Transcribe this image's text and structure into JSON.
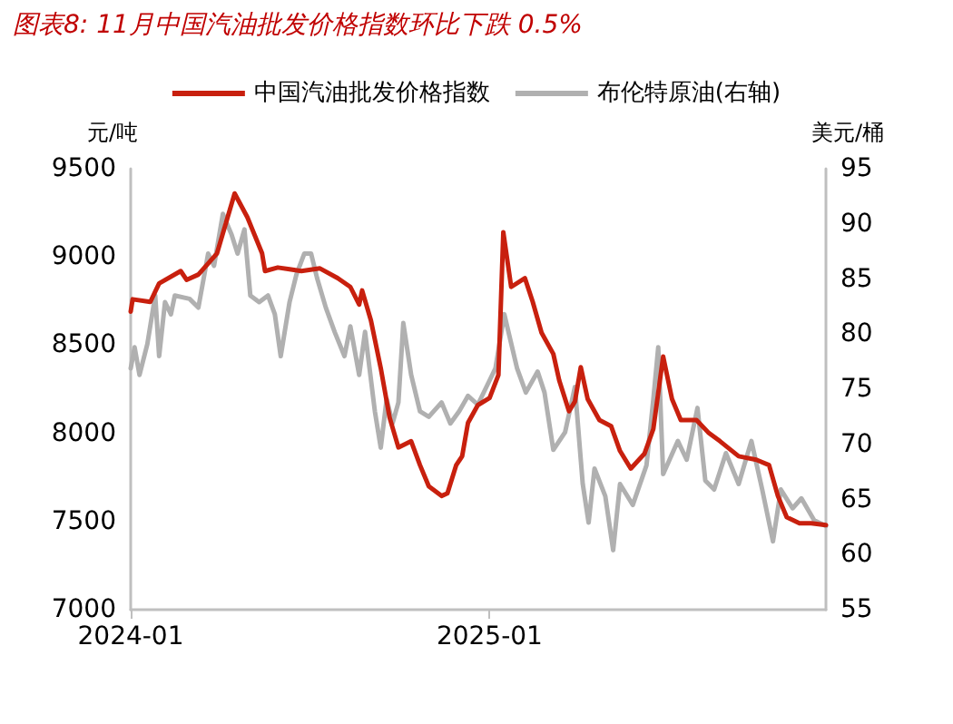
{
  "chart_data": {
    "type": "line",
    "title": "图表8: 11月中国汽油批发价格指数环比下跌 0.5%",
    "ylabel": "元/吨",
    "y2label": "美元/桶",
    "xlim": [
      "2024-01-01",
      "2025-12-10"
    ],
    "xticks": [
      {
        "value": "2024-01-01",
        "label": "2024-01"
      },
      {
        "value": "2025-01-01",
        "label": "2025-01"
      }
    ],
    "ylim": [
      7000,
      9500
    ],
    "yticks": [
      7000,
      7500,
      8000,
      8500,
      9000,
      9500
    ],
    "y2lim": [
      55,
      95
    ],
    "y2ticks": [
      55,
      60,
      65,
      70,
      75,
      80,
      85,
      90,
      95
    ],
    "legend": "top",
    "grid": false,
    "marker": "none",
    "line_style": "solid",
    "series": [
      {
        "name": "中国汽油批发价格指数",
        "color": "#c8200e",
        "x": [
          "2024-01-01",
          "2024-01-03",
          "2024-01-21",
          "2024-01-30",
          "2024-02-21",
          "2024-02-27",
          "2024-03-10",
          "2024-03-29",
          "2024-04-16",
          "2024-04-29",
          "2024-05-14",
          "2024-05-17",
          "2024-05-30",
          "2024-06-11",
          "2024-06-23",
          "2024-07-12",
          "2024-07-30",
          "2024-08-12",
          "2024-08-21",
          "2024-08-24",
          "2024-09-02",
          "2024-09-12",
          "2024-09-21",
          "2024-09-30",
          "2024-10-13",
          "2024-10-22",
          "2024-10-31",
          "2024-11-13",
          "2024-11-19",
          "2024-11-28",
          "2024-12-04",
          "2024-12-10",
          "2024-12-20",
          "2025-01-01",
          "2025-01-10",
          "2025-01-15",
          "2025-01-23",
          "2025-02-06",
          "2025-02-14",
          "2025-02-23",
          "2025-03-07",
          "2025-03-13",
          "2025-03-23",
          "2025-03-29",
          "2025-04-04",
          "2025-04-11",
          "2025-04-23",
          "2025-05-05",
          "2025-05-14",
          "2025-05-25",
          "2025-06-08",
          "2025-06-17",
          "2025-06-27",
          "2025-07-06",
          "2025-07-15",
          "2025-07-31",
          "2025-08-12",
          "2025-08-24",
          "2025-09-12",
          "2025-09-30",
          "2025-10-13",
          "2025-10-22",
          "2025-10-31",
          "2025-11-13",
          "2025-11-25",
          "2025-12-10"
        ],
        "values": [
          8690,
          8760,
          8745,
          8850,
          8920,
          8870,
          8900,
          9020,
          9360,
          9225,
          9020,
          8920,
          8940,
          8930,
          8920,
          8935,
          8880,
          8830,
          8730,
          8810,
          8640,
          8370,
          8090,
          7920,
          7955,
          7820,
          7700,
          7645,
          7660,
          7820,
          7870,
          8060,
          8160,
          8200,
          8330,
          9140,
          8830,
          8880,
          8745,
          8570,
          8450,
          8300,
          8125,
          8180,
          8375,
          8195,
          8075,
          8040,
          7900,
          7800,
          7885,
          8025,
          8435,
          8195,
          8075,
          8075,
          8005,
          7955,
          7870,
          7850,
          7820,
          7645,
          7525,
          7490,
          7490,
          7480
        ]
      },
      {
        "name": "布伦特原油(右轴)",
        "color": "#b0b0b0",
        "axis": "y2",
        "x": [
          "2024-01-01",
          "2024-01-05",
          "2024-01-10",
          "2024-01-18",
          "2024-01-26",
          "2024-01-30",
          "2024-02-05",
          "2024-02-11",
          "2024-02-15",
          "2024-03-01",
          "2024-03-10",
          "2024-03-20",
          "2024-03-26",
          "2024-04-04",
          "2024-04-13",
          "2024-04-19",
          "2024-04-26",
          "2024-05-02",
          "2024-05-11",
          "2024-05-20",
          "2024-05-27",
          "2024-06-02",
          "2024-06-11",
          "2024-06-18",
          "2024-06-26",
          "2024-07-03",
          "2024-07-09",
          "2024-07-18",
          "2024-07-27",
          "2024-08-06",
          "2024-08-12",
          "2024-08-21",
          "2024-08-27",
          "2024-09-06",
          "2024-09-12",
          "2024-09-18",
          "2024-09-24",
          "2024-09-30",
          "2024-10-05",
          "2024-10-13",
          "2024-10-22",
          "2024-10-31",
          "2024-11-13",
          "2024-11-22",
          "2024-12-01",
          "2024-12-10",
          "2024-12-20",
          "2025-01-01",
          "2025-01-07",
          "2025-01-16",
          "2025-01-29",
          "2025-02-07",
          "2025-02-19",
          "2025-02-26",
          "2025-03-07",
          "2025-03-19",
          "2025-03-29",
          "2025-04-06",
          "2025-04-12",
          "2025-04-18",
          "2025-04-29",
          "2025-05-07",
          "2025-05-14",
          "2025-05-27",
          "2025-06-10",
          "2025-06-17",
          "2025-06-22",
          "2025-06-27",
          "2025-07-12",
          "2025-07-21",
          "2025-08-01",
          "2025-08-09",
          "2025-08-18",
          "2025-08-30",
          "2025-09-12",
          "2025-09-25",
          "2025-10-06",
          "2025-10-17",
          "2025-10-25",
          "2025-11-06",
          "2025-11-15",
          "2025-11-28",
          "2025-12-10"
        ],
        "values": [
          76.9,
          78.8,
          76.3,
          79.1,
          83.5,
          78.0,
          82.9,
          81.8,
          83.5,
          83.2,
          82.4,
          87.3,
          86.2,
          90.9,
          89.0,
          87.3,
          89.5,
          83.5,
          82.9,
          83.5,
          81.8,
          78.0,
          82.9,
          85.4,
          87.3,
          87.3,
          85.1,
          82.4,
          80.2,
          78.0,
          80.7,
          76.3,
          80.2,
          73.0,
          69.7,
          74.1,
          71.9,
          73.8,
          81.0,
          76.3,
          73.0,
          72.5,
          73.8,
          71.9,
          73.0,
          74.4,
          73.6,
          75.8,
          76.9,
          81.8,
          76.9,
          74.7,
          76.6,
          74.7,
          69.5,
          71.1,
          75.2,
          66.4,
          62.9,
          67.8,
          65.3,
          60.4,
          66.4,
          64.5,
          68.1,
          74.1,
          78.8,
          67.3,
          70.3,
          68.6,
          73.3,
          66.7,
          65.9,
          69.2,
          66.4,
          70.3,
          65.9,
          61.2,
          65.9,
          64.2,
          65.1,
          63.1,
          62.6
        ]
      }
    ]
  }
}
